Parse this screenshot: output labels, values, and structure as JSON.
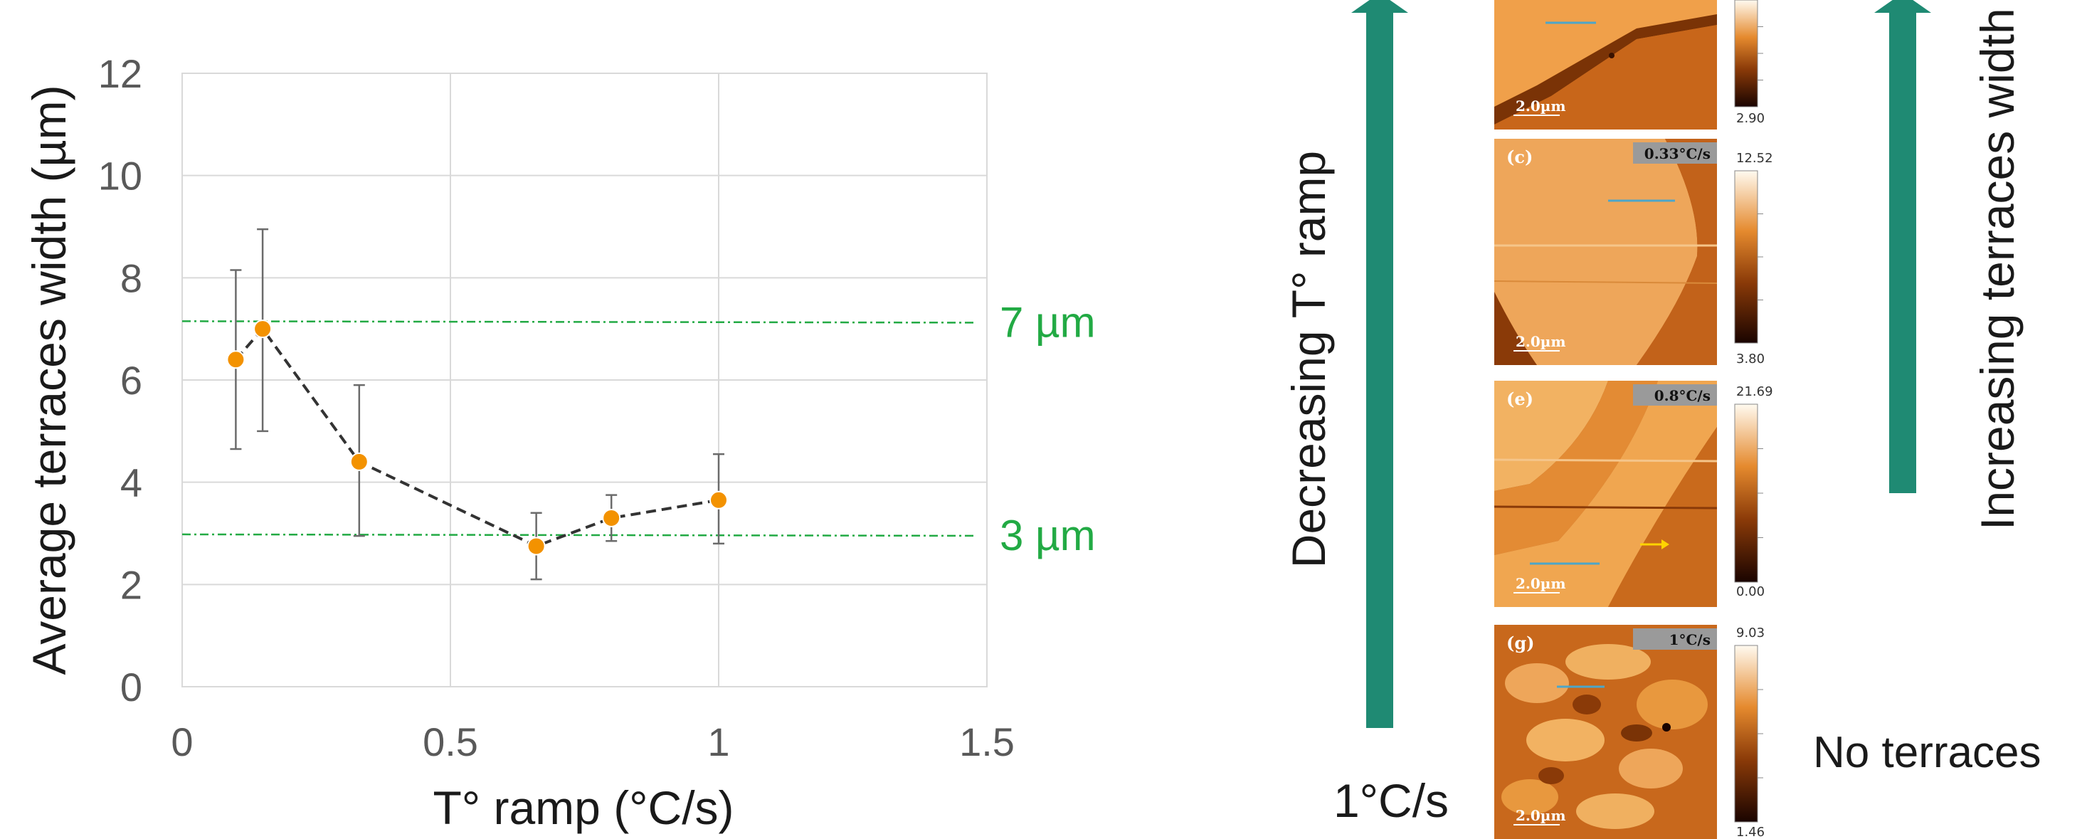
{
  "chart_data": {
    "type": "scatter",
    "ylabel": "Average terraces width (µm)",
    "xlabel": "T° ramp (°C/s)",
    "xlim": [
      0,
      1.5
    ],
    "ylim": [
      0,
      12
    ],
    "xticks": [
      "0",
      "0.5",
      "1",
      "1.5"
    ],
    "yticks": [
      "0",
      "2",
      "4",
      "6",
      "8",
      "10",
      "12"
    ],
    "grid": true,
    "series": [
      {
        "x": [
          0.1,
          0.15,
          0.33,
          0.66,
          0.8,
          1.0
        ],
        "y": [
          6.4,
          7.0,
          4.4,
          2.75,
          3.3,
          3.65
        ],
        "err_low": [
          4.65,
          5.0,
          2.95,
          2.1,
          2.85,
          2.8
        ],
        "err_high": [
          8.15,
          8.95,
          5.9,
          3.4,
          3.75,
          4.55
        ],
        "color": "#f39200",
        "line_style": "dashed"
      }
    ],
    "reference_lines": [
      {
        "y": 7.15,
        "label": "7 µm",
        "color": "#22aa44"
      },
      {
        "y": 2.98,
        "label": "3 µm",
        "color": "#22aa44"
      }
    ]
  },
  "annotations": {
    "left_arrow_label": "Decreasing T° ramp",
    "bottom_label": "1°C/s",
    "right_arrow_label": "Increasing terraces width",
    "no_terraces": "No terraces"
  },
  "afm_panels": [
    {
      "label": "",
      "rate": "",
      "scalebar": "2.0µm",
      "cb_max": "",
      "cb_min": "2.90"
    },
    {
      "label": "(c)",
      "rate": "0.33°C/s",
      "scalebar": "2.0µm",
      "cb_max": "12.52",
      "cb_min": "3.80"
    },
    {
      "label": "(e)",
      "rate": "0.8°C/s",
      "scalebar": "2.0µm",
      "cb_max": "21.69",
      "cb_min": "0.00"
    },
    {
      "label": "(g)",
      "rate": "1°C/s",
      "scalebar": "2.0µm",
      "cb_max": "9.03",
      "cb_min": "1.46"
    }
  ],
  "colors": {
    "arrow": "#1f8a73",
    "marker": "#f39200",
    "reference": "#22aa44",
    "afm_dark": "#6b2a06",
    "afm_mid": "#c65f14",
    "afm_light": "#f0a450"
  }
}
